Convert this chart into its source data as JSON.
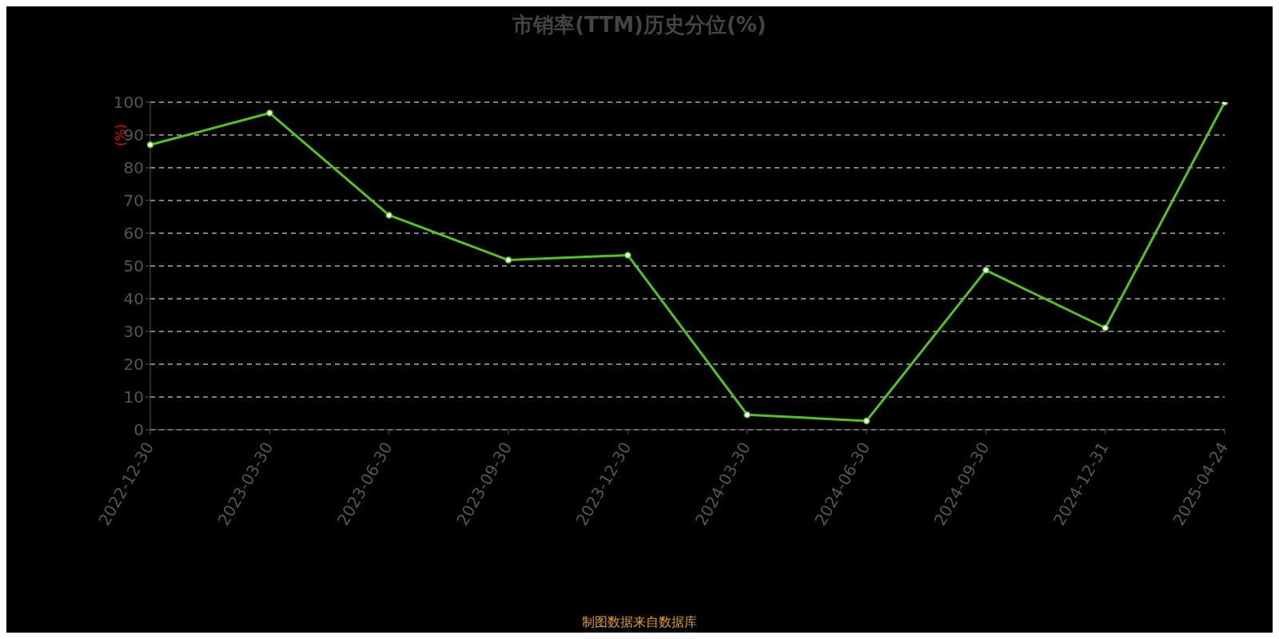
{
  "chart_data": {
    "type": "line",
    "title": "市销率(TTM)历史分位(%)",
    "ylabel": "(%)",
    "categories": [
      "2022-12-30",
      "2023-03-30",
      "2023-06-30",
      "2023-09-30",
      "2023-12-30",
      "2024-03-30",
      "2024-06-30",
      "2024-09-30",
      "2024-12-31",
      "2025-04-24"
    ],
    "series": [
      {
        "color": "#52c41a",
        "values": [
          87.0,
          96.7,
          65.5,
          51.8,
          53.3,
          4.6,
          2.7,
          48.7,
          31.1,
          100
        ]
      }
    ],
    "ylim": [
      0,
      100
    ],
    "yticks": [
      0,
      10,
      20,
      30,
      40,
      50,
      60,
      70,
      80,
      90,
      100
    ],
    "grid": "y",
    "marker": "circle",
    "line_style": "solid",
    "legend": false,
    "annotations": [
      "制图数据来自数据库"
    ]
  }
}
